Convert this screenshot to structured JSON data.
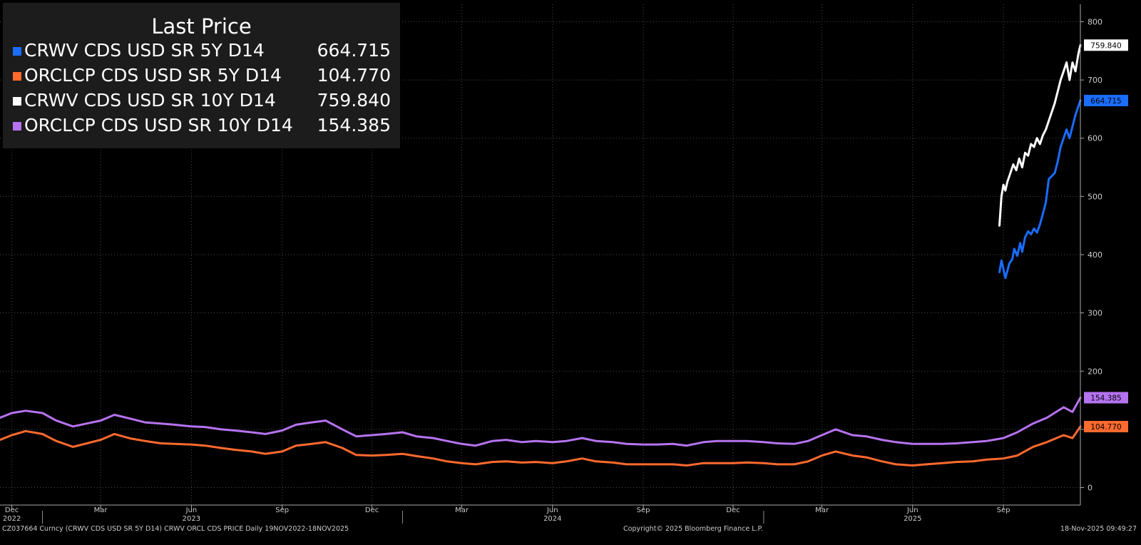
{
  "chart_data": {
    "type": "line",
    "title": "",
    "xlabel": "",
    "ylabel": "",
    "x_range": [
      "2022-11-19",
      "2025-11-18"
    ],
    "ylim": [
      -30,
      830
    ],
    "y_ticks": [
      0,
      100,
      200,
      300,
      400,
      500,
      600,
      700,
      800
    ],
    "grid": true,
    "x_month_labels": [
      {
        "date": "2022-12-01",
        "label": "Dec"
      },
      {
        "date": "2023-03-01",
        "label": "Mar"
      },
      {
        "date": "2023-06-01",
        "label": "Jun"
      },
      {
        "date": "2023-09-01",
        "label": "Sep"
      },
      {
        "date": "2023-12-01",
        "label": "Dec"
      },
      {
        "date": "2024-03-01",
        "label": "Mar"
      },
      {
        "date": "2024-06-01",
        "label": "Jun"
      },
      {
        "date": "2024-09-01",
        "label": "Sep"
      },
      {
        "date": "2024-12-01",
        "label": "Dec"
      },
      {
        "date": "2025-03-01",
        "label": "Mar"
      },
      {
        "date": "2025-06-01",
        "label": "Jun"
      },
      {
        "date": "2025-09-01",
        "label": "Sep"
      }
    ],
    "x_year_labels": [
      {
        "date": "2022-12-01",
        "label": "2022"
      },
      {
        "date": "2023-06-01",
        "label": "2023"
      },
      {
        "date": "2024-06-01",
        "label": "2024"
      },
      {
        "date": "2025-06-01",
        "label": "2025"
      }
    ],
    "legend_title": "Last Price",
    "legend_position": "top-left",
    "series": [
      {
        "name": "CRWV CDS USD SR 5Y D14",
        "last": "664.715",
        "color": "#1a6dff",
        "points": [
          [
            "2025-08-28",
            370
          ],
          [
            "2025-08-30",
            390
          ],
          [
            "2025-09-01",
            375
          ],
          [
            "2025-09-03",
            360
          ],
          [
            "2025-09-05",
            372
          ],
          [
            "2025-09-07",
            385
          ],
          [
            "2025-09-10",
            392
          ],
          [
            "2025-09-12",
            410
          ],
          [
            "2025-09-15",
            398
          ],
          [
            "2025-09-18",
            420
          ],
          [
            "2025-09-20",
            405
          ],
          [
            "2025-09-23",
            430
          ],
          [
            "2025-09-26",
            440
          ],
          [
            "2025-09-29",
            435
          ],
          [
            "2025-10-02",
            445
          ],
          [
            "2025-10-05",
            438
          ],
          [
            "2025-10-08",
            452
          ],
          [
            "2025-10-11",
            470
          ],
          [
            "2025-10-14",
            490
          ],
          [
            "2025-10-17",
            530
          ],
          [
            "2025-10-20",
            535
          ],
          [
            "2025-10-23",
            540
          ],
          [
            "2025-10-26",
            560
          ],
          [
            "2025-10-29",
            585
          ],
          [
            "2025-11-01",
            600
          ],
          [
            "2025-11-04",
            615
          ],
          [
            "2025-11-07",
            600
          ],
          [
            "2025-11-10",
            620
          ],
          [
            "2025-11-13",
            640
          ],
          [
            "2025-11-16",
            655
          ],
          [
            "2025-11-18",
            664.715
          ]
        ]
      },
      {
        "name": "ORCLCP CDS USD SR 5Y D14",
        "last": "104.770",
        "color": "#ff6a2e",
        "points": [
          [
            "2022-11-19",
            82
          ],
          [
            "2022-12-01",
            90
          ],
          [
            "2022-12-15",
            97
          ],
          [
            "2023-01-01",
            92
          ],
          [
            "2023-01-15",
            80
          ],
          [
            "2023-02-01",
            70
          ],
          [
            "2023-02-15",
            76
          ],
          [
            "2023-03-01",
            82
          ],
          [
            "2023-03-15",
            92
          ],
          [
            "2023-04-01",
            84
          ],
          [
            "2023-04-15",
            80
          ],
          [
            "2023-05-01",
            76
          ],
          [
            "2023-05-15",
            75
          ],
          [
            "2023-06-01",
            74
          ],
          [
            "2023-06-15",
            72
          ],
          [
            "2023-07-01",
            68
          ],
          [
            "2023-07-15",
            65
          ],
          [
            "2023-08-01",
            62
          ],
          [
            "2023-08-15",
            58
          ],
          [
            "2023-09-01",
            62
          ],
          [
            "2023-09-15",
            72
          ],
          [
            "2023-10-01",
            75
          ],
          [
            "2023-10-15",
            78
          ],
          [
            "2023-11-01",
            68
          ],
          [
            "2023-11-15",
            56
          ],
          [
            "2023-12-01",
            55
          ],
          [
            "2023-12-15",
            56
          ],
          [
            "2024-01-01",
            58
          ],
          [
            "2024-01-15",
            54
          ],
          [
            "2024-02-01",
            50
          ],
          [
            "2024-02-15",
            45
          ],
          [
            "2024-03-01",
            42
          ],
          [
            "2024-03-15",
            40
          ],
          [
            "2024-04-01",
            44
          ],
          [
            "2024-04-15",
            45
          ],
          [
            "2024-05-01",
            43
          ],
          [
            "2024-05-15",
            44
          ],
          [
            "2024-06-01",
            42
          ],
          [
            "2024-06-15",
            45
          ],
          [
            "2024-07-01",
            50
          ],
          [
            "2024-07-15",
            45
          ],
          [
            "2024-08-01",
            43
          ],
          [
            "2024-08-15",
            40
          ],
          [
            "2024-09-01",
            40
          ],
          [
            "2024-09-15",
            40
          ],
          [
            "2024-10-01",
            40
          ],
          [
            "2024-10-15",
            38
          ],
          [
            "2024-11-01",
            42
          ],
          [
            "2024-11-15",
            42
          ],
          [
            "2024-12-01",
            42
          ],
          [
            "2024-12-15",
            43
          ],
          [
            "2025-01-01",
            42
          ],
          [
            "2025-01-15",
            40
          ],
          [
            "2025-02-01",
            40
          ],
          [
            "2025-02-15",
            45
          ],
          [
            "2025-03-01",
            55
          ],
          [
            "2025-03-15",
            62
          ],
          [
            "2025-04-01",
            55
          ],
          [
            "2025-04-15",
            52
          ],
          [
            "2025-05-01",
            45
          ],
          [
            "2025-05-15",
            40
          ],
          [
            "2025-06-01",
            38
          ],
          [
            "2025-06-15",
            40
          ],
          [
            "2025-07-01",
            42
          ],
          [
            "2025-07-15",
            44
          ],
          [
            "2025-08-01",
            45
          ],
          [
            "2025-08-15",
            48
          ],
          [
            "2025-09-01",
            50
          ],
          [
            "2025-09-15",
            55
          ],
          [
            "2025-10-01",
            70
          ],
          [
            "2025-10-15",
            78
          ],
          [
            "2025-11-01",
            90
          ],
          [
            "2025-11-10",
            85
          ],
          [
            "2025-11-18",
            104.77
          ]
        ]
      },
      {
        "name": "CRWV CDS USD SR 10Y D14",
        "last": "759.840",
        "color": "#ffffff",
        "points": [
          [
            "2025-08-28",
            450
          ],
          [
            "2025-08-30",
            500
          ],
          [
            "2025-09-01",
            520
          ],
          [
            "2025-09-03",
            510
          ],
          [
            "2025-09-05",
            525
          ],
          [
            "2025-09-08",
            540
          ],
          [
            "2025-09-11",
            555
          ],
          [
            "2025-09-14",
            545
          ],
          [
            "2025-09-17",
            565
          ],
          [
            "2025-09-20",
            550
          ],
          [
            "2025-09-23",
            575
          ],
          [
            "2025-09-26",
            570
          ],
          [
            "2025-09-29",
            590
          ],
          [
            "2025-10-02",
            585
          ],
          [
            "2025-10-05",
            600
          ],
          [
            "2025-10-08",
            590
          ],
          [
            "2025-10-11",
            605
          ],
          [
            "2025-10-14",
            615
          ],
          [
            "2025-10-17",
            630
          ],
          [
            "2025-10-20",
            645
          ],
          [
            "2025-10-23",
            660
          ],
          [
            "2025-10-26",
            680
          ],
          [
            "2025-10-29",
            700
          ],
          [
            "2025-11-01",
            715
          ],
          [
            "2025-11-04",
            730
          ],
          [
            "2025-11-07",
            700
          ],
          [
            "2025-11-10",
            730
          ],
          [
            "2025-11-13",
            715
          ],
          [
            "2025-11-16",
            745
          ],
          [
            "2025-11-18",
            759.84
          ]
        ]
      },
      {
        "name": "ORCLCP CDS USD SR 10Y D14",
        "last": "154.385",
        "color": "#b673f0",
        "points": [
          [
            "2022-11-19",
            120
          ],
          [
            "2022-12-01",
            128
          ],
          [
            "2022-12-15",
            132
          ],
          [
            "2023-01-01",
            128
          ],
          [
            "2023-01-15",
            115
          ],
          [
            "2023-02-01",
            105
          ],
          [
            "2023-02-15",
            110
          ],
          [
            "2023-03-01",
            115
          ],
          [
            "2023-03-15",
            125
          ],
          [
            "2023-04-01",
            118
          ],
          [
            "2023-04-15",
            112
          ],
          [
            "2023-05-01",
            110
          ],
          [
            "2023-05-15",
            108
          ],
          [
            "2023-06-01",
            105
          ],
          [
            "2023-06-15",
            104
          ],
          [
            "2023-07-01",
            100
          ],
          [
            "2023-07-15",
            98
          ],
          [
            "2023-08-01",
            95
          ],
          [
            "2023-08-15",
            92
          ],
          [
            "2023-09-01",
            98
          ],
          [
            "2023-09-15",
            108
          ],
          [
            "2023-10-01",
            112
          ],
          [
            "2023-10-15",
            115
          ],
          [
            "2023-11-01",
            100
          ],
          [
            "2023-11-15",
            88
          ],
          [
            "2023-12-01",
            90
          ],
          [
            "2023-12-15",
            92
          ],
          [
            "2024-01-01",
            95
          ],
          [
            "2024-01-15",
            88
          ],
          [
            "2024-02-01",
            85
          ],
          [
            "2024-02-15",
            80
          ],
          [
            "2024-03-01",
            75
          ],
          [
            "2024-03-15",
            72
          ],
          [
            "2024-04-01",
            80
          ],
          [
            "2024-04-15",
            82
          ],
          [
            "2024-05-01",
            78
          ],
          [
            "2024-05-15",
            80
          ],
          [
            "2024-06-01",
            78
          ],
          [
            "2024-06-15",
            80
          ],
          [
            "2024-07-01",
            85
          ],
          [
            "2024-07-15",
            80
          ],
          [
            "2024-08-01",
            78
          ],
          [
            "2024-08-15",
            75
          ],
          [
            "2024-09-01",
            74
          ],
          [
            "2024-09-15",
            74
          ],
          [
            "2024-10-01",
            75
          ],
          [
            "2024-10-15",
            72
          ],
          [
            "2024-11-01",
            78
          ],
          [
            "2024-11-15",
            80
          ],
          [
            "2024-12-01",
            80
          ],
          [
            "2024-12-15",
            80
          ],
          [
            "2025-01-01",
            78
          ],
          [
            "2025-01-15",
            76
          ],
          [
            "2025-02-01",
            75
          ],
          [
            "2025-02-15",
            80
          ],
          [
            "2025-03-01",
            90
          ],
          [
            "2025-03-15",
            100
          ],
          [
            "2025-04-01",
            90
          ],
          [
            "2025-04-15",
            88
          ],
          [
            "2025-05-01",
            82
          ],
          [
            "2025-05-15",
            78
          ],
          [
            "2025-06-01",
            75
          ],
          [
            "2025-06-15",
            75
          ],
          [
            "2025-07-01",
            75
          ],
          [
            "2025-07-15",
            76
          ],
          [
            "2025-08-01",
            78
          ],
          [
            "2025-08-15",
            80
          ],
          [
            "2025-09-01",
            85
          ],
          [
            "2025-09-15",
            95
          ],
          [
            "2025-10-01",
            110
          ],
          [
            "2025-10-15",
            120
          ],
          [
            "2025-11-01",
            138
          ],
          [
            "2025-11-10",
            130
          ],
          [
            "2025-11-18",
            154.385
          ]
        ]
      }
    ]
  },
  "footer": {
    "left": "CZ037664 Curncy (CRWV CDS USD SR 5Y D14) CRWV ORCL CDS PRICE Daily 19NOV2022-18NOV2025",
    "center": "Copyright© 2025 Bloomberg Finance L.P.",
    "right": "18-Nov-2025 09:49:27"
  }
}
